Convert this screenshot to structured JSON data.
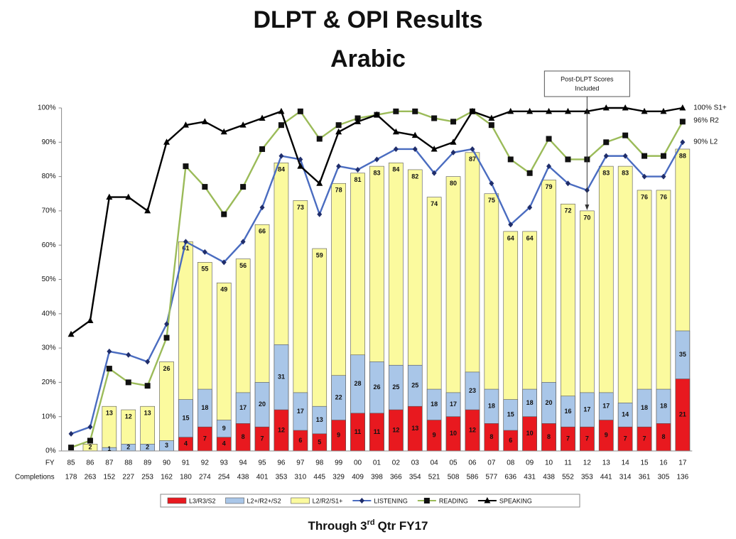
{
  "chart_data": {
    "type": "bar",
    "title": "DLPT & OPI Results",
    "subtitle": "Arabic",
    "footer": [
      "Through 3",
      "rd",
      "Qtr FY17"
    ],
    "category_label": "FY",
    "categories": [
      "85",
      "86",
      "87",
      "88",
      "89",
      "90",
      "91",
      "92",
      "93",
      "94",
      "95",
      "96",
      "97",
      "98",
      "99",
      "00",
      "01",
      "02",
      "03",
      "04",
      "05",
      "06",
      "07",
      "08",
      "09",
      "10",
      "11",
      "12",
      "13",
      "14",
      "15",
      "16",
      "17"
    ],
    "completions": {
      "label": "Completions",
      "values": [
        178,
        263,
        152,
        227,
        253,
        162,
        180,
        274,
        254,
        438,
        401,
        353,
        310,
        445,
        329,
        409,
        398,
        366,
        354,
        521,
        508,
        586,
        577,
        636,
        431,
        438,
        552,
        353,
        441,
        314,
        361,
        305,
        136
      ]
    },
    "ylim": [
      0,
      100
    ],
    "yticks": [
      {
        "value": 0,
        "label": "0%"
      },
      {
        "value": 10,
        "label": "10%"
      },
      {
        "value": 20,
        "label": "20%"
      },
      {
        "value": 30,
        "label": "30%"
      },
      {
        "value": 40,
        "label": "40%"
      },
      {
        "value": 50,
        "label": "50%"
      },
      {
        "value": 60,
        "label": "60%"
      },
      {
        "value": 70,
        "label": "70%"
      },
      {
        "value": 80,
        "label": "80%"
      },
      {
        "value": 90,
        "label": "90%"
      },
      {
        "value": 100,
        "label": "100%"
      }
    ],
    "bar_layout": "overlapped",
    "series": [
      {
        "name": "L3/R3/S2",
        "kind": "bar",
        "color": "#e8191f",
        "values": [
          null,
          null,
          null,
          null,
          null,
          null,
          4,
          7,
          4,
          8,
          7,
          12,
          6,
          5,
          9,
          11,
          11,
          12,
          13,
          9,
          10,
          12,
          8,
          6,
          10,
          8,
          7,
          7,
          9,
          7,
          7,
          8,
          21
        ]
      },
      {
        "name": "L2+/R2+/S2",
        "kind": "bar",
        "color": "#a9c6e8",
        "values": [
          null,
          null,
          1,
          2,
          2,
          3,
          15,
          18,
          9,
          17,
          20,
          31,
          17,
          13,
          22,
          28,
          26,
          25,
          25,
          18,
          17,
          23,
          18,
          15,
          18,
          20,
          16,
          17,
          17,
          14,
          18,
          18,
          35
        ]
      },
      {
        "name": "L2/R2/S1+",
        "kind": "bar",
        "color": "#fbfa9e",
        "values": [
          null,
          2,
          13,
          12,
          13,
          26,
          61,
          55,
          49,
          56,
          66,
          84,
          73,
          59,
          78,
          81,
          83,
          84,
          82,
          74,
          80,
          87,
          75,
          64,
          64,
          79,
          72,
          70,
          83,
          83,
          76,
          76,
          88
        ]
      },
      {
        "name": "LISTENING",
        "kind": "line",
        "marker": "diamond",
        "color": "#4a6cc0",
        "values": [
          5,
          7,
          29,
          28,
          26,
          37,
          61,
          58,
          55,
          61,
          71,
          86,
          85,
          69,
          83,
          82,
          85,
          88,
          88,
          81,
          87,
          88,
          78,
          66,
          71,
          83,
          78,
          76,
          86,
          86,
          80,
          80,
          90
        ]
      },
      {
        "name": "READING",
        "kind": "line",
        "marker": "square",
        "color": "#9bbb59",
        "values": [
          1,
          3,
          24,
          20,
          19,
          33,
          83,
          77,
          69,
          77,
          88,
          95,
          99,
          91,
          95,
          97,
          98,
          99,
          99,
          97,
          96,
          99,
          95,
          85,
          81,
          91,
          85,
          85,
          90,
          92,
          86,
          86,
          96
        ]
      },
      {
        "name": "SPEAKING",
        "kind": "line",
        "marker": "triangle",
        "color": "#000000",
        "values": [
          34,
          38,
          74,
          74,
          70,
          90,
          95,
          96,
          93,
          95,
          97,
          99,
          83,
          78,
          93,
          96,
          98,
          93,
          92,
          88,
          90,
          99,
          97,
          99,
          99,
          99,
          99,
          99,
          100,
          100,
          99,
          99,
          100
        ]
      }
    ],
    "end_labels": [
      "100% S1+",
      "96% R2",
      "90% L2"
    ],
    "annotation": {
      "text": [
        "Post-DLPT Scores",
        "Included"
      ],
      "category": "12"
    }
  }
}
